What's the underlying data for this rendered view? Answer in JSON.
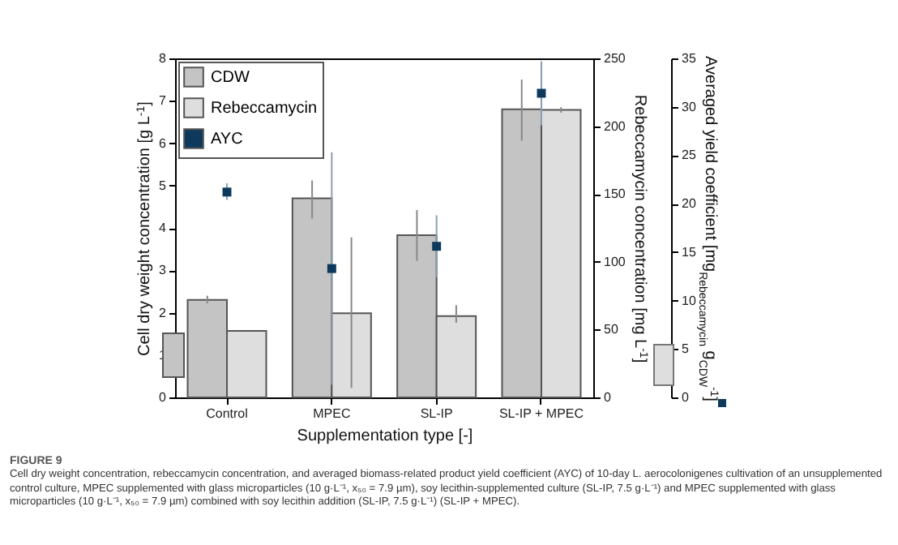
{
  "chart_data": {
    "type": "bar",
    "categories": [
      "Control",
      "MPEC",
      "SL-IP",
      "SL-IP + MPEC"
    ],
    "series": [
      {
        "name": "CDW",
        "color": "#c4c4c4",
        "values": [
          2.3,
          4.7,
          3.83,
          6.8
        ],
        "errors": [
          [
            2.22,
            2.4
          ],
          [
            4.22,
            5.12
          ],
          [
            3.22,
            4.42
          ],
          [
            6.06,
            7.5
          ]
        ]
      },
      {
        "name": "Rebeccamycin",
        "axis": "y2",
        "color": "#dedede",
        "values": [
          49,
          62,
          60,
          212
        ],
        "errors": [
          null,
          [
            7,
            118
          ],
          [
            55,
            68
          ],
          [
            210,
            214
          ]
        ]
      },
      {
        "name": "AYC",
        "type": "scatter",
        "axis": "y3",
        "color": "#0d3a5c",
        "marker": "square",
        "values": [
          21.2,
          13.3,
          15.6,
          31.4
        ],
        "errors": [
          [
            20.4,
            22.1
          ],
          [
            1.3,
            25.3
          ],
          [
            12.4,
            18.8
          ],
          [
            28.1,
            34.7
          ]
        ]
      }
    ],
    "xlabel": "Supplementation type [-]",
    "ylabel": "Cell dry weight concentration [g L$^{-1}$]",
    "y2label": "Rebeccamycin concentration [mg L$^{-1}$]",
    "y3label": "Averaged yield coefficient [mg$_{Rebeccamycin}$ g$_{CDW}$$^{-1}$]",
    "ylim": [
      0,
      8
    ],
    "yticks": [
      0,
      1,
      2,
      3,
      4,
      5,
      6,
      7,
      8
    ],
    "y2lim": [
      0,
      250
    ],
    "y2ticks": [
      0,
      50,
      100,
      150,
      200,
      250
    ],
    "y3lim": [
      0,
      35
    ],
    "y3ticks": [
      0,
      5,
      10,
      15,
      20,
      25,
      30,
      35
    ],
    "legend": "top left",
    "grid": false,
    "annotations": [
      "FIGURE 9",
      "Cell dry weight concentration, rebeccamycin concentration, and averaged biomass-related product yield coefficient (AYC) of 10-day L. aerocolonigenes cultivation of an unsupplemented control culture, MPEC supplemented with glass microparticles (10 g·L⁻¹, x₅₀ = 7.9 µm), soy lecithin-supplemented culture (SL-IP, 7.5 g·L⁻¹) and MPEC supplemented with glass microparticles (10 g·L⁻¹, x₅₀ = 7.9 µm) combined with soy lecithin addition (SL-IP, 7.5 g·L⁻¹) (SL-IP + MPEC)."
    ]
  }
}
